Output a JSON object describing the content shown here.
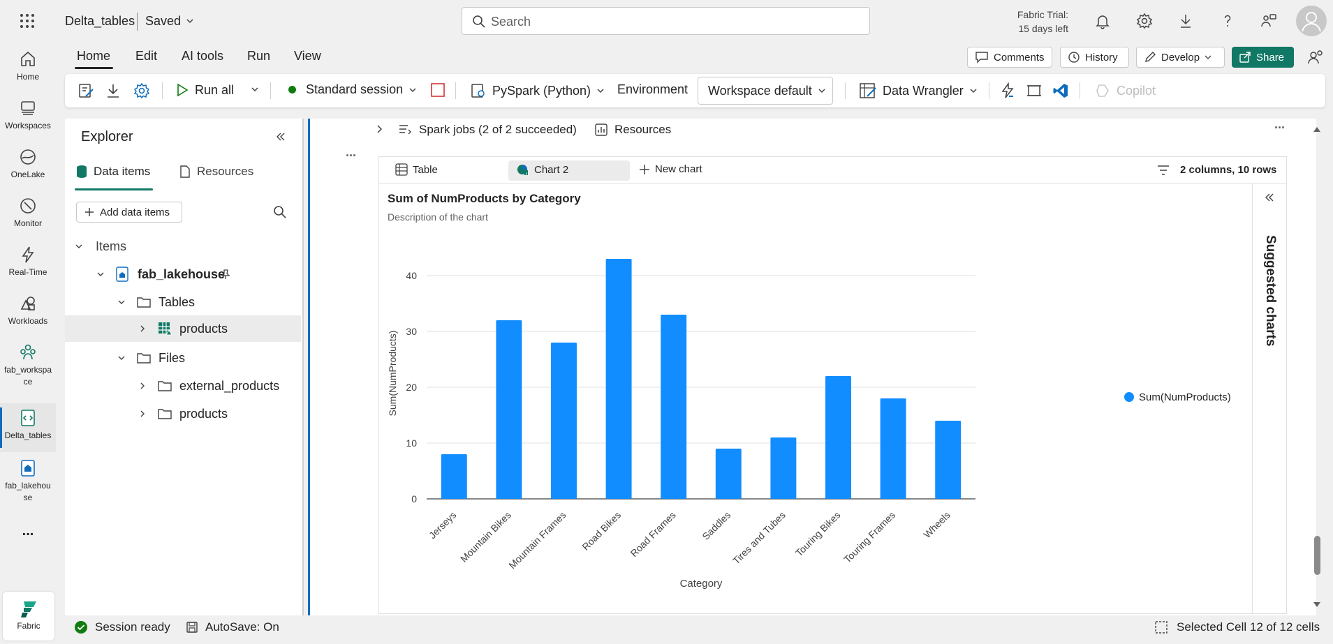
{
  "topbar": {
    "doc_title": "Delta_tables",
    "saved": "Saved",
    "search_placeholder": "Search",
    "trial_line1": "Fabric Trial:",
    "trial_line2": "15 days left"
  },
  "rail": {
    "items": [
      {
        "label": "Home",
        "icon": "home-icon"
      },
      {
        "label": "Workspaces",
        "icon": "workspaces-icon"
      },
      {
        "label": "OneLake",
        "icon": "onelake-icon"
      },
      {
        "label": "Monitor",
        "icon": "monitor-icon"
      },
      {
        "label": "Real-Time",
        "icon": "lightning-icon"
      },
      {
        "label": "Workloads",
        "icon": "workloads-icon"
      },
      {
        "label_1": "fab_workspa",
        "label_2": "ce",
        "icon": "people-icon"
      },
      {
        "label": "Delta_tables",
        "icon": "notebook-icon"
      },
      {
        "label_1": "fab_lakehou",
        "label_2": "se",
        "icon": "lakehouse-icon"
      }
    ],
    "more": "...",
    "fabric_label": "Fabric"
  },
  "tabs": [
    "Home",
    "Edit",
    "AI tools",
    "Run",
    "View"
  ],
  "header_buttons": {
    "comments": "Comments",
    "history": "History",
    "develop": "Develop",
    "share": "Share"
  },
  "toolbar": {
    "run_all": "Run all",
    "session": "Standard session",
    "language": "PySpark (Python)",
    "environment": "Environment",
    "workspace_default": "Workspace default",
    "data_wrangler": "Data Wrangler",
    "copilot": "Copilot"
  },
  "explorer": {
    "title": "Explorer",
    "tab_data_items": "Data items",
    "tab_resources": "Resources",
    "add_data_items": "Add data items",
    "tree": {
      "items": "Items",
      "lakehouse": "fab_lakehouse",
      "tables": "Tables",
      "products_table": "products",
      "files": "Files",
      "external_products": "external_products",
      "products_folder": "products"
    }
  },
  "cell": {
    "spark_jobs": "Spark jobs (2 of 2 succeeded)",
    "resources": "Resources",
    "more": "...",
    "chart_tabs": {
      "table": "Table",
      "chart2": "Chart 2",
      "new_chart": "New chart"
    },
    "rows_info": "2 columns, 10 rows",
    "suggested_charts": "Suggested charts"
  },
  "chart_data": {
    "type": "bar",
    "title": "Sum of NumProducts by Category",
    "subtitle": "Description of the chart",
    "xlabel": "Category",
    "ylabel": "Sum(NumProducts)",
    "ylim": [
      0,
      45
    ],
    "yticks": [
      0,
      10,
      20,
      30,
      40
    ],
    "grid": true,
    "legend_position": "right",
    "bar_color": "#118dff",
    "categories": [
      "Jerseys",
      "Mountain Bikes",
      "Mountain Frames",
      "Road Bikes",
      "Road Frames",
      "Saddles",
      "Tires and Tubes",
      "Touring Bikes",
      "Touring Frames",
      "Wheels"
    ],
    "series": [
      {
        "name": "Sum(NumProducts)",
        "values": [
          8,
          32,
          28,
          43,
          33,
          9,
          11,
          22,
          18,
          14
        ]
      }
    ]
  },
  "status": {
    "session_ready": "Session ready",
    "autosave": "AutoSave: On",
    "selected_cell": "Selected Cell 12 of 12 cells"
  },
  "colors": {
    "accent": "#0f6cbd",
    "share_green": "#117865",
    "bar_blue": "#118dff",
    "status_green": "#107c10"
  }
}
